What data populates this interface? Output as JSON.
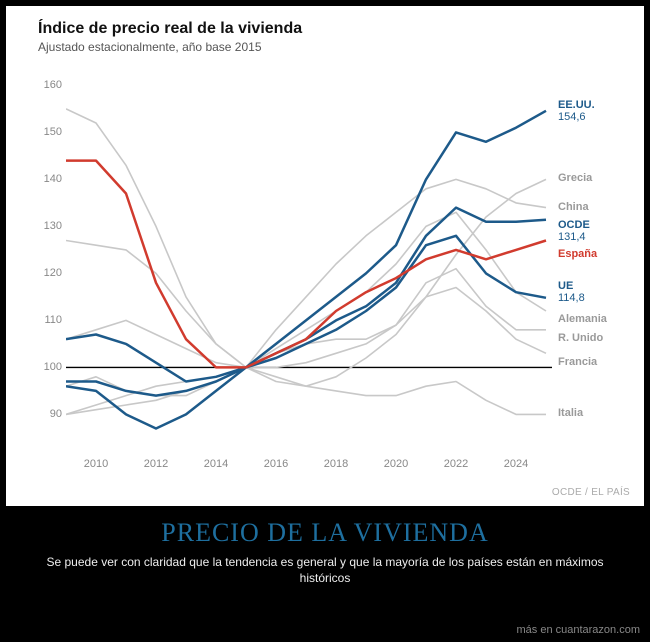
{
  "page": {
    "background": "#000000",
    "caption_title": "PRECIO DE LA VIVIENDA",
    "caption_title_color": "#1e6f9f",
    "caption_title_fontsize": 26,
    "caption_text": "Se puede ver con claridad que la tendencia es general y que la mayoría de los países están en máximos históricos",
    "caption_text_fontsize": 12,
    "footer": "más en cuantarazon.com",
    "footer_fontsize": 11
  },
  "chart": {
    "type": "line",
    "title": "Índice de precio real de la vivienda",
    "title_fontsize": 16,
    "subtitle": "Ajustado estacionalmente, año base 2015",
    "subtitle_fontsize": 12,
    "source": "OCDE / EL PAÍS",
    "source_fontsize": 10,
    "background_color": "#ffffff",
    "grid_color": "#e8e8e8",
    "baseline_color": "#000000",
    "axis_label_color": "#888888",
    "axis_fontsize": 11,
    "xlim": [
      2009,
      2025.2
    ],
    "ylim": [
      82,
      162
    ],
    "yticks": [
      90,
      100,
      110,
      120,
      130,
      140,
      150,
      160
    ],
    "xticks": [
      2010,
      2012,
      2014,
      2016,
      2018,
      2020,
      2022,
      2024
    ],
    "baseline_y": 100,
    "line_width_main": 2.5,
    "line_width_bg": 1.6,
    "label_fontsize": 11,
    "series": [
      {
        "name": "EE.UU.",
        "color": "#1d5a8a",
        "end_value": "154,6",
        "x": [
          2009,
          2010,
          2011,
          2012,
          2013,
          2014,
          2015,
          2016,
          2017,
          2018,
          2019,
          2020,
          2021,
          2022,
          2023,
          2024,
          2025
        ],
        "y": [
          96,
          95,
          90,
          87,
          90,
          95,
          100,
          105,
          110,
          115,
          120,
          126,
          140,
          150,
          148,
          151,
          154.6
        ]
      },
      {
        "name": "OCDE",
        "color": "#1d5a8a",
        "end_value": "131,4",
        "x": [
          2009,
          2010,
          2011,
          2012,
          2013,
          2014,
          2015,
          2016,
          2017,
          2018,
          2019,
          2020,
          2021,
          2022,
          2023,
          2024,
          2025
        ],
        "y": [
          97,
          97,
          95,
          94,
          95,
          97,
          100,
          103,
          106,
          110,
          113,
          118,
          128,
          134,
          131,
          131,
          131.4
        ]
      },
      {
        "name": "UE",
        "color": "#1d5a8a",
        "end_value": "114,8",
        "x": [
          2009,
          2010,
          2011,
          2012,
          2013,
          2014,
          2015,
          2016,
          2017,
          2018,
          2019,
          2020,
          2021,
          2022,
          2023,
          2024,
          2025
        ],
        "y": [
          106,
          107,
          105,
          101,
          97,
          98,
          100,
          102,
          105,
          108,
          112,
          117,
          126,
          128,
          120,
          116,
          114.8
        ]
      },
      {
        "name": "España",
        "color": "#d13b2e",
        "end_value": "",
        "x": [
          2009,
          2010,
          2011,
          2012,
          2013,
          2014,
          2015,
          2016,
          2017,
          2018,
          2019,
          2020,
          2021,
          2022,
          2023,
          2024,
          2025
        ],
        "y": [
          144,
          144,
          137,
          118,
          106,
          100,
          100,
          103,
          106,
          112,
          116,
          119,
          123,
          125,
          123,
          125,
          127
        ]
      },
      {
        "name": "Grecia",
        "color": "#c8c8c8",
        "end_value": "",
        "x": [
          2009,
          2010,
          2011,
          2012,
          2013,
          2014,
          2015,
          2016,
          2017,
          2018,
          2019,
          2020,
          2021,
          2022,
          2023,
          2024,
          2025
        ],
        "y": [
          155,
          152,
          143,
          130,
          115,
          105,
          100,
          97,
          96,
          98,
          102,
          107,
          115,
          124,
          132,
          137,
          140
        ]
      },
      {
        "name": "China",
        "color": "#c8c8c8",
        "end_value": "",
        "x": [
          2009,
          2010,
          2011,
          2012,
          2013,
          2014,
          2015,
          2016,
          2017,
          2018,
          2019,
          2020,
          2021,
          2022,
          2023,
          2024,
          2025
        ],
        "y": [
          90,
          92,
          94,
          96,
          97,
          98,
          100,
          108,
          115,
          122,
          128,
          133,
          138,
          140,
          138,
          135,
          134
        ]
      },
      {
        "name": "Alemania",
        "color": "#c8c8c8",
        "end_value": "",
        "x": [
          2009,
          2010,
          2011,
          2012,
          2013,
          2014,
          2015,
          2016,
          2017,
          2018,
          2019,
          2020,
          2021,
          2022,
          2023,
          2024,
          2025
        ],
        "y": [
          90,
          91,
          92,
          93,
          95,
          97,
          100,
          104,
          108,
          112,
          116,
          122,
          130,
          133,
          125,
          116,
          112
        ]
      },
      {
        "name": "R. Unido",
        "color": "#c8c8c8",
        "end_value": "",
        "x": [
          2009,
          2010,
          2011,
          2012,
          2013,
          2014,
          2015,
          2016,
          2017,
          2018,
          2019,
          2020,
          2021,
          2022,
          2023,
          2024,
          2025
        ],
        "y": [
          96,
          98,
          95,
          94,
          94,
          97,
          100,
          103,
          105,
          106,
          106,
          109,
          118,
          121,
          113,
          108,
          108
        ]
      },
      {
        "name": "Francia",
        "color": "#c8c8c8",
        "end_value": "",
        "x": [
          2009,
          2010,
          2011,
          2012,
          2013,
          2014,
          2015,
          2016,
          2017,
          2018,
          2019,
          2020,
          2021,
          2022,
          2023,
          2024,
          2025
        ],
        "y": [
          106,
          108,
          110,
          107,
          104,
          101,
          100,
          100,
          101,
          103,
          105,
          109,
          115,
          117,
          112,
          106,
          103
        ]
      },
      {
        "name": "Italia",
        "color": "#c8c8c8",
        "end_value": "",
        "x": [
          2009,
          2010,
          2011,
          2012,
          2013,
          2014,
          2015,
          2016,
          2017,
          2018,
          2019,
          2020,
          2021,
          2022,
          2023,
          2024,
          2025
        ],
        "y": [
          127,
          126,
          125,
          120,
          112,
          105,
          100,
          98,
          96,
          95,
          94,
          94,
          96,
          97,
          93,
          90,
          90
        ]
      }
    ],
    "end_labels": [
      {
        "text": "EE.UU.",
        "value": "154,6",
        "y": 154.6,
        "color": "#1d5a8a"
      },
      {
        "text": "Grecia",
        "value": "",
        "y": 140,
        "color": "#9a9a9a"
      },
      {
        "text": "China",
        "value": "",
        "y": 134,
        "color": "#9a9a9a"
      },
      {
        "text": "OCDE",
        "value": "131,4",
        "y": 129,
        "color": "#1d5a8a"
      },
      {
        "text": "España",
        "value": "",
        "y": 124,
        "color": "#d13b2e"
      },
      {
        "text": "UE",
        "value": "114,8",
        "y": 116,
        "color": "#1d5a8a"
      },
      {
        "text": "Alemania",
        "value": "",
        "y": 110,
        "color": "#9a9a9a"
      },
      {
        "text": "R. Unido",
        "value": "",
        "y": 106,
        "color": "#9a9a9a"
      },
      {
        "text": "Francia",
        "value": "",
        "y": 101,
        "color": "#9a9a9a"
      },
      {
        "text": "Italia",
        "value": "",
        "y": 90,
        "color": "#9a9a9a"
      }
    ]
  }
}
